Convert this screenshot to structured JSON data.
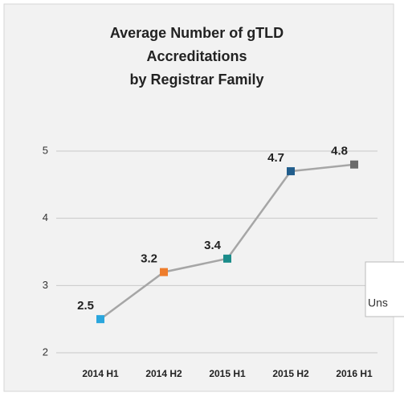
{
  "chart_data": {
    "type": "line",
    "title": [
      "Average Number of gTLD",
      "Accreditations",
      "by Registrar Family"
    ],
    "categories": [
      "2014 H1",
      "2014 H2",
      "2015 H1",
      "2015 H2",
      "2016 H1"
    ],
    "values": [
      2.5,
      3.2,
      3.4,
      4.7,
      4.8
    ],
    "line_color": "#a6a6a6",
    "point_colors": [
      "#2aa6dd",
      "#ee7d2c",
      "#1b8c8a",
      "#215d8c",
      "#6b6b6b"
    ],
    "ylim": [
      2,
      5
    ],
    "yticks": [
      2,
      3,
      4,
      5
    ],
    "grid": true
  },
  "overlay": {
    "text": "Uns"
  }
}
